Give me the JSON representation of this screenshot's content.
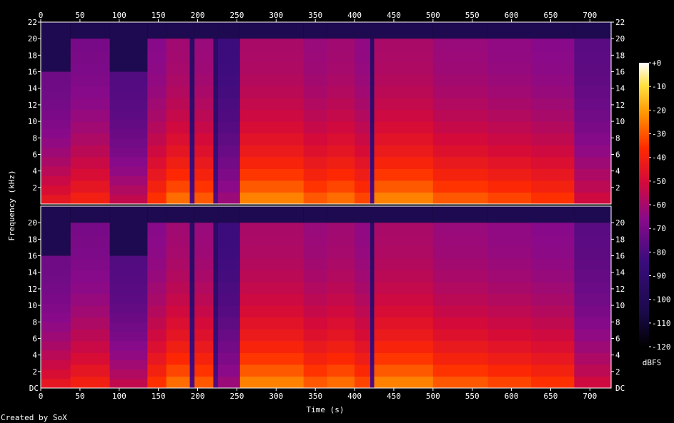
{
  "chart_data": {
    "type": "heatmap",
    "title": "",
    "xlabel": "Time (s)",
    "ylabel": "Frequency (kHz)",
    "xlim": [
      0,
      727
    ],
    "ylim": [
      0,
      22
    ],
    "x_ticks": [
      0,
      50,
      100,
      150,
      200,
      250,
      300,
      350,
      400,
      450,
      500,
      550,
      600,
      650,
      700
    ],
    "y_ticks": [
      {
        "value": 22,
        "label": "22"
      },
      {
        "value": 20,
        "label": "20"
      },
      {
        "value": 18,
        "label": "18"
      },
      {
        "value": 16,
        "label": "16"
      },
      {
        "value": 14,
        "label": "14"
      },
      {
        "value": 12,
        "label": "12"
      },
      {
        "value": 10,
        "label": "10"
      },
      {
        "value": 8,
        "label": "8"
      },
      {
        "value": 6,
        "label": "6"
      },
      {
        "value": 4,
        "label": "4"
      },
      {
        "value": 2,
        "label": "2"
      }
    ],
    "bottom_tick_label": "DC",
    "channels": 2,
    "colorbar": {
      "unit_label": "dBFS",
      "range": [
        -120,
        0
      ],
      "ticks": [
        "+0",
        "-10",
        "-20",
        "-30",
        "-40",
        "-50",
        "-60",
        "-70",
        "-80",
        "-90",
        "-100",
        "-110",
        "-120"
      ]
    },
    "segments": [
      {
        "start": 0,
        "end": 38,
        "cutoff_khz": 16,
        "level": 0.55
      },
      {
        "start": 38,
        "end": 88,
        "cutoff_khz": 20,
        "level": 0.58
      },
      {
        "start": 88,
        "end": 136,
        "cutoff_khz": 16,
        "level": 0.48
      },
      {
        "start": 136,
        "end": 160,
        "cutoff_khz": 20,
        "level": 0.62
      },
      {
        "start": 160,
        "end": 190,
        "cutoff_khz": 20,
        "level": 0.68
      },
      {
        "start": 190,
        "end": 196,
        "cutoff_khz": 20,
        "level": 0.3
      },
      {
        "start": 196,
        "end": 220,
        "cutoff_khz": 20,
        "level": 0.66
      },
      {
        "start": 220,
        "end": 226,
        "cutoff_khz": 20,
        "level": 0.3
      },
      {
        "start": 226,
        "end": 254,
        "cutoff_khz": 20,
        "level": 0.42
      },
      {
        "start": 254,
        "end": 335,
        "cutoff_khz": 20,
        "level": 0.7
      },
      {
        "start": 335,
        "end": 365,
        "cutoff_khz": 20,
        "level": 0.66
      },
      {
        "start": 365,
        "end": 400,
        "cutoff_khz": 20,
        "level": 0.68
      },
      {
        "start": 400,
        "end": 420,
        "cutoff_khz": 20,
        "level": 0.64
      },
      {
        "start": 420,
        "end": 425,
        "cutoff_khz": 20,
        "level": 0.3
      },
      {
        "start": 425,
        "end": 500,
        "cutoff_khz": 20,
        "level": 0.7
      },
      {
        "start": 500,
        "end": 570,
        "cutoff_khz": 20,
        "level": 0.66
      },
      {
        "start": 570,
        "end": 625,
        "cutoff_khz": 20,
        "level": 0.64
      },
      {
        "start": 625,
        "end": 680,
        "cutoff_khz": 20,
        "level": 0.62
      },
      {
        "start": 680,
        "end": 727,
        "cutoff_khz": 20,
        "level": 0.5
      }
    ]
  },
  "footer": {
    "credit": "Created by SoX"
  }
}
